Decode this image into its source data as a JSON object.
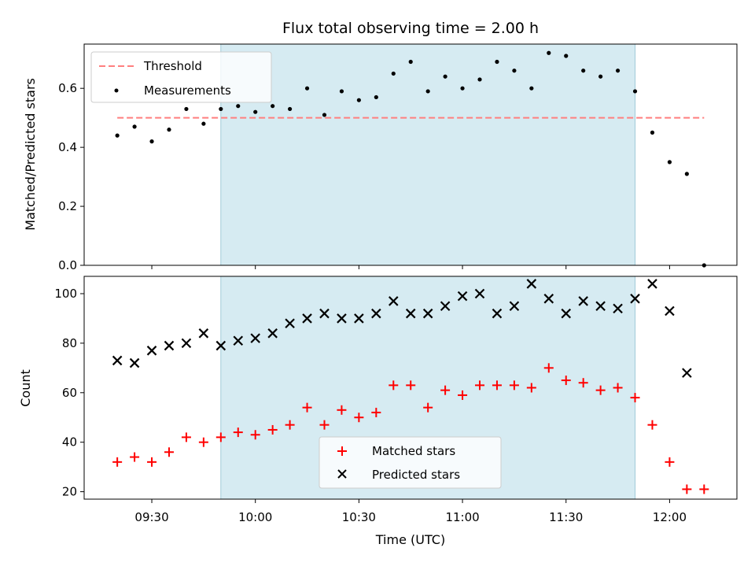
{
  "chart_data": [
    {
      "type": "scatter",
      "title": "Flux total observing time = 2.00 h",
      "xlabel": "",
      "ylabel": "Matched/Predicted stars",
      "ylim": [
        0,
        0.75
      ],
      "yticks": [
        "0.0",
        "0.2",
        "0.4",
        "0.6"
      ],
      "grid": false,
      "legend_position": "top-left",
      "shaded_span": {
        "start": "09:50",
        "end": "11:50",
        "color": "#add8e6"
      },
      "threshold": {
        "name": "Threshold",
        "value": 0.5,
        "x_start": "09:20",
        "x_end": "12:10",
        "color": "#ff7f7f"
      },
      "series": [
        {
          "name": "Measurements",
          "marker": "dot",
          "color": "#000000",
          "x": [
            "09:20",
            "09:25",
            "09:30",
            "09:35",
            "09:40",
            "09:45",
            "09:50",
            "09:55",
            "10:00",
            "10:05",
            "10:10",
            "10:15",
            "10:20",
            "10:25",
            "10:30",
            "10:35",
            "10:40",
            "10:45",
            "10:50",
            "10:55",
            "11:00",
            "11:05",
            "11:10",
            "11:15",
            "11:20",
            "11:25",
            "11:30",
            "11:35",
            "11:40",
            "11:45",
            "11:50",
            "11:55",
            "12:00",
            "12:05",
            "12:10"
          ],
          "y": [
            0.44,
            0.47,
            0.42,
            0.46,
            0.53,
            0.48,
            0.53,
            0.54,
            0.52,
            0.54,
            0.53,
            0.6,
            0.51,
            0.59,
            0.56,
            0.57,
            0.65,
            0.69,
            0.59,
            0.64,
            0.6,
            0.63,
            0.69,
            0.66,
            0.6,
            0.72,
            0.71,
            0.66,
            0.64,
            0.66,
            0.59,
            0.45,
            0.35,
            0.31,
            0.0
          ]
        }
      ]
    },
    {
      "type": "scatter",
      "title": "",
      "xlabel": "Time (UTC)",
      "ylabel": "Count",
      "ylim": [
        17,
        107
      ],
      "yticks": [
        "20",
        "40",
        "60",
        "80",
        "100"
      ],
      "xticks": [
        "09:30",
        "10:00",
        "10:30",
        "11:00",
        "11:30",
        "12:00"
      ],
      "grid": false,
      "legend_position": "bottom-center",
      "shaded_span": {
        "start": "09:50",
        "end": "11:50",
        "color": "#add8e6"
      },
      "series": [
        {
          "name": "Matched stars",
          "marker": "plus",
          "color": "#ff0000",
          "x": [
            "09:20",
            "09:25",
            "09:30",
            "09:35",
            "09:40",
            "09:45",
            "09:50",
            "09:55",
            "10:00",
            "10:05",
            "10:10",
            "10:15",
            "10:20",
            "10:25",
            "10:30",
            "10:35",
            "10:40",
            "10:45",
            "10:50",
            "10:55",
            "11:00",
            "11:05",
            "11:10",
            "11:15",
            "11:20",
            "11:25",
            "11:30",
            "11:35",
            "11:40",
            "11:45",
            "11:50",
            "11:55",
            "12:00",
            "12:05",
            "12:10"
          ],
          "y": [
            32,
            34,
            32,
            36,
            42,
            40,
            42,
            44,
            43,
            45,
            47,
            54,
            47,
            53,
            50,
            52,
            63,
            63,
            54,
            61,
            59,
            63,
            63,
            63,
            62,
            70,
            65,
            64,
            61,
            62,
            58,
            47,
            32,
            21,
            21
          ]
        },
        {
          "name": "Predicted stars",
          "marker": "x",
          "color": "#000000",
          "x": [
            "09:20",
            "09:25",
            "09:30",
            "09:35",
            "09:40",
            "09:45",
            "09:50",
            "09:55",
            "10:00",
            "10:05",
            "10:10",
            "10:15",
            "10:20",
            "10:25",
            "10:30",
            "10:35",
            "10:40",
            "10:45",
            "10:50",
            "10:55",
            "11:00",
            "11:05",
            "11:10",
            "11:15",
            "11:20",
            "11:25",
            "11:30",
            "11:35",
            "11:40",
            "11:45",
            "11:50",
            "11:55",
            "12:00",
            "12:05"
          ],
          "y": [
            73,
            72,
            77,
            79,
            80,
            84,
            79,
            81,
            82,
            84,
            88,
            90,
            92,
            90,
            90,
            92,
            97,
            92,
            92,
            95,
            99,
            100,
            92,
            95,
            104,
            98,
            92,
            97,
            95,
            94,
            98,
            104,
            93,
            68
          ]
        }
      ]
    }
  ]
}
